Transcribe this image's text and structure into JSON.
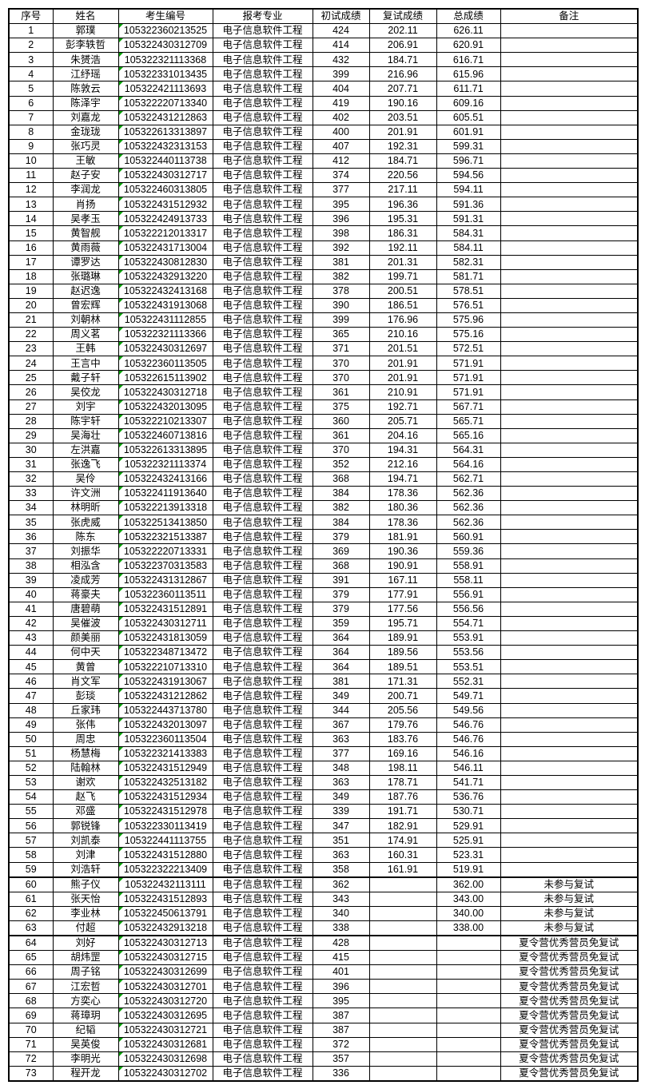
{
  "colors": {
    "border": "#000000",
    "text": "#000000",
    "corner_marker_green": "#00a000",
    "no_retest_total_blue": "#2222cc",
    "background": "#ffffff"
  },
  "table": {
    "headers": [
      "序号",
      "姓名",
      "考生编号",
      "报考专业",
      "初试成绩",
      "复试成绩",
      "总成绩",
      "备注"
    ],
    "rows": [
      {
        "no": "1",
        "name": "郭璞",
        "id": "105322360213525",
        "major": "电子信息软件工程",
        "initial": "424",
        "retest": "202.11",
        "total": "626.11",
        "remark": ""
      },
      {
        "no": "2",
        "name": "彭李轶哲",
        "id": "105322430312709",
        "major": "电子信息软件工程",
        "initial": "414",
        "retest": "206.91",
        "total": "620.91",
        "remark": ""
      },
      {
        "no": "3",
        "name": "朱赟浩",
        "id": "105322321113368",
        "major": "电子信息软件工程",
        "initial": "432",
        "retest": "184.71",
        "total": "616.71",
        "remark": ""
      },
      {
        "no": "4",
        "name": "江纾瑶",
        "id": "105322331013435",
        "major": "电子信息软件工程",
        "initial": "399",
        "retest": "216.96",
        "total": "615.96",
        "remark": ""
      },
      {
        "no": "5",
        "name": "陈敦云",
        "id": "105322421113693",
        "major": "电子信息软件工程",
        "initial": "404",
        "retest": "207.71",
        "total": "611.71",
        "remark": ""
      },
      {
        "no": "6",
        "name": "陈泽宇",
        "id": "105322220713340",
        "major": "电子信息软件工程",
        "initial": "419",
        "retest": "190.16",
        "total": "609.16",
        "remark": ""
      },
      {
        "no": "7",
        "name": "刘嘉龙",
        "id": "105322431212863",
        "major": "电子信息软件工程",
        "initial": "402",
        "retest": "203.51",
        "total": "605.51",
        "remark": ""
      },
      {
        "no": "8",
        "name": "金珑珑",
        "id": "105322613313897",
        "major": "电子信息软件工程",
        "initial": "400",
        "retest": "201.91",
        "total": "601.91",
        "remark": ""
      },
      {
        "no": "9",
        "name": "张巧灵",
        "id": "105322432313153",
        "major": "电子信息软件工程",
        "initial": "407",
        "retest": "192.31",
        "total": "599.31",
        "remark": ""
      },
      {
        "no": "10",
        "name": "王敏",
        "id": "105322440113738",
        "major": "电子信息软件工程",
        "initial": "412",
        "retest": "184.71",
        "total": "596.71",
        "remark": ""
      },
      {
        "no": "11",
        "name": "赵子安",
        "id": "105322430312717",
        "major": "电子信息软件工程",
        "initial": "374",
        "retest": "220.56",
        "total": "594.56",
        "remark": ""
      },
      {
        "no": "12",
        "name": "李润龙",
        "id": "105322460313805",
        "major": "电子信息软件工程",
        "initial": "377",
        "retest": "217.11",
        "total": "594.11",
        "remark": ""
      },
      {
        "no": "13",
        "name": "肖扬",
        "id": "105322431512932",
        "major": "电子信息软件工程",
        "initial": "395",
        "retest": "196.36",
        "total": "591.36",
        "remark": ""
      },
      {
        "no": "14",
        "name": "吴孝玉",
        "id": "105322424913733",
        "major": "电子信息软件工程",
        "initial": "396",
        "retest": "195.31",
        "total": "591.31",
        "remark": ""
      },
      {
        "no": "15",
        "name": "黄智舰",
        "id": "105322212013317",
        "major": "电子信息软件工程",
        "initial": "398",
        "retest": "186.31",
        "total": "584.31",
        "remark": ""
      },
      {
        "no": "16",
        "name": "黄雨薇",
        "id": "105322431713004",
        "major": "电子信息软件工程",
        "initial": "392",
        "retest": "192.11",
        "total": "584.11",
        "remark": ""
      },
      {
        "no": "17",
        "name": "谭罗达",
        "id": "105322430812830",
        "major": "电子信息软件工程",
        "initial": "381",
        "retest": "201.31",
        "total": "582.31",
        "remark": ""
      },
      {
        "no": "18",
        "name": "张璐琳",
        "id": "105322432913220",
        "major": "电子信息软件工程",
        "initial": "382",
        "retest": "199.71",
        "total": "581.71",
        "remark": ""
      },
      {
        "no": "19",
        "name": "赵迟逸",
        "id": "105322432413168",
        "major": "电子信息软件工程",
        "initial": "378",
        "retest": "200.51",
        "total": "578.51",
        "remark": ""
      },
      {
        "no": "20",
        "name": "曾宏辉",
        "id": "105322431913068",
        "major": "电子信息软件工程",
        "initial": "390",
        "retest": "186.51",
        "total": "576.51",
        "remark": ""
      },
      {
        "no": "21",
        "name": "刘朝林",
        "id": "105322431112855",
        "major": "电子信息软件工程",
        "initial": "399",
        "retest": "176.96",
        "total": "575.96",
        "remark": ""
      },
      {
        "no": "22",
        "name": "周义茗",
        "id": "105322321113366",
        "major": "电子信息软件工程",
        "initial": "365",
        "retest": "210.16",
        "total": "575.16",
        "remark": ""
      },
      {
        "no": "23",
        "name": "王韩",
        "id": "105322430312697",
        "major": "电子信息软件工程",
        "initial": "371",
        "retest": "201.51",
        "total": "572.51",
        "remark": ""
      },
      {
        "no": "24",
        "name": "王言中",
        "id": "105322360113505",
        "major": "电子信息软件工程",
        "initial": "370",
        "retest": "201.91",
        "total": "571.91",
        "remark": ""
      },
      {
        "no": "25",
        "name": "戴子轩",
        "id": "105322615113902",
        "major": "电子信息软件工程",
        "initial": "370",
        "retest": "201.91",
        "total": "571.91",
        "remark": ""
      },
      {
        "no": "26",
        "name": "吴佼龙",
        "id": "105322430312718",
        "major": "电子信息软件工程",
        "initial": "361",
        "retest": "210.91",
        "total": "571.91",
        "remark": ""
      },
      {
        "no": "27",
        "name": "刘宇",
        "id": "105322432013095",
        "major": "电子信息软件工程",
        "initial": "375",
        "retest": "192.71",
        "total": "567.71",
        "remark": ""
      },
      {
        "no": "28",
        "name": "陈宇轩",
        "id": "105322210213307",
        "major": "电子信息软件工程",
        "initial": "360",
        "retest": "205.71",
        "total": "565.71",
        "remark": ""
      },
      {
        "no": "29",
        "name": "吴海壮",
        "id": "105322460713816",
        "major": "电子信息软件工程",
        "initial": "361",
        "retest": "204.16",
        "total": "565.16",
        "remark": ""
      },
      {
        "no": "30",
        "name": "左洪嘉",
        "id": "105322613313895",
        "major": "电子信息软件工程",
        "initial": "370",
        "retest": "194.31",
        "total": "564.31",
        "remark": ""
      },
      {
        "no": "31",
        "name": "张逸飞",
        "id": "105322321113374",
        "major": "电子信息软件工程",
        "initial": "352",
        "retest": "212.16",
        "total": "564.16",
        "remark": ""
      },
      {
        "no": "32",
        "name": "吴伶",
        "id": "105322432413166",
        "major": "电子信息软件工程",
        "initial": "368",
        "retest": "194.71",
        "total": "562.71",
        "remark": ""
      },
      {
        "no": "33",
        "name": "许文洲",
        "id": "105322411913640",
        "major": "电子信息软件工程",
        "initial": "384",
        "retest": "178.36",
        "total": "562.36",
        "remark": ""
      },
      {
        "no": "34",
        "name": "林明昕",
        "id": "105322213913318",
        "major": "电子信息软件工程",
        "initial": "382",
        "retest": "180.36",
        "total": "562.36",
        "remark": ""
      },
      {
        "no": "35",
        "name": "张虎威",
        "id": "105322513413850",
        "major": "电子信息软件工程",
        "initial": "384",
        "retest": "178.36",
        "total": "562.36",
        "remark": ""
      },
      {
        "no": "36",
        "name": "陈东",
        "id": "105322321513387",
        "major": "电子信息软件工程",
        "initial": "379",
        "retest": "181.91",
        "total": "560.91",
        "remark": ""
      },
      {
        "no": "37",
        "name": "刘振华",
        "id": "105322220713331",
        "major": "电子信息软件工程",
        "initial": "369",
        "retest": "190.36",
        "total": "559.36",
        "remark": ""
      },
      {
        "no": "38",
        "name": "相泓含",
        "id": "105322370313583",
        "major": "电子信息软件工程",
        "initial": "368",
        "retest": "190.91",
        "total": "558.91",
        "remark": ""
      },
      {
        "no": "39",
        "name": "凌成芳",
        "id": "105322431312867",
        "major": "电子信息软件工程",
        "initial": "391",
        "retest": "167.11",
        "total": "558.11",
        "remark": ""
      },
      {
        "no": "40",
        "name": "蒋豪夫",
        "id": "105322360113511",
        "major": "电子信息软件工程",
        "initial": "379",
        "retest": "177.91",
        "total": "556.91",
        "remark": ""
      },
      {
        "no": "41",
        "name": "唐碧萌",
        "id": "105322431512891",
        "major": "电子信息软件工程",
        "initial": "379",
        "retest": "177.56",
        "total": "556.56",
        "remark": ""
      },
      {
        "no": "42",
        "name": "吴催波",
        "id": "105322430312711",
        "major": "电子信息软件工程",
        "initial": "359",
        "retest": "195.71",
        "total": "554.71",
        "remark": ""
      },
      {
        "no": "43",
        "name": "颜美丽",
        "id": "105322431813059",
        "major": "电子信息软件工程",
        "initial": "364",
        "retest": "189.91",
        "total": "553.91",
        "remark": ""
      },
      {
        "no": "44",
        "name": "何中天",
        "id": "105322348713472",
        "major": "电子信息软件工程",
        "initial": "364",
        "retest": "189.56",
        "total": "553.56",
        "remark": ""
      },
      {
        "no": "45",
        "name": "黄曾",
        "id": "105322210713310",
        "major": "电子信息软件工程",
        "initial": "364",
        "retest": "189.51",
        "total": "553.51",
        "remark": ""
      },
      {
        "no": "46",
        "name": "肖文军",
        "id": "105322431913067",
        "major": "电子信息软件工程",
        "initial": "381",
        "retest": "171.31",
        "total": "552.31",
        "remark": ""
      },
      {
        "no": "47",
        "name": "彭琰",
        "id": "105322431212862",
        "major": "电子信息软件工程",
        "initial": "349",
        "retest": "200.71",
        "total": "549.71",
        "remark": ""
      },
      {
        "no": "48",
        "name": "丘家玮",
        "id": "105322443713780",
        "major": "电子信息软件工程",
        "initial": "344",
        "retest": "205.56",
        "total": "549.56",
        "remark": ""
      },
      {
        "no": "49",
        "name": "张伟",
        "id": "105322432013097",
        "major": "电子信息软件工程",
        "initial": "367",
        "retest": "179.76",
        "total": "546.76",
        "remark": ""
      },
      {
        "no": "50",
        "name": "周忠",
        "id": "105322360113504",
        "major": "电子信息软件工程",
        "initial": "363",
        "retest": "183.76",
        "total": "546.76",
        "remark": ""
      },
      {
        "no": "51",
        "name": "杨慧梅",
        "id": "105322321413383",
        "major": "电子信息软件工程",
        "initial": "377",
        "retest": "169.16",
        "total": "546.16",
        "remark": ""
      },
      {
        "no": "52",
        "name": "陆翰林",
        "id": "105322431512949",
        "major": "电子信息软件工程",
        "initial": "348",
        "retest": "198.11",
        "total": "546.11",
        "remark": ""
      },
      {
        "no": "53",
        "name": "谢欢",
        "id": "105322432513182",
        "major": "电子信息软件工程",
        "initial": "363",
        "retest": "178.71",
        "total": "541.71",
        "remark": ""
      },
      {
        "no": "54",
        "name": "赵飞",
        "id": "105322431512934",
        "major": "电子信息软件工程",
        "initial": "349",
        "retest": "187.76",
        "total": "536.76",
        "remark": ""
      },
      {
        "no": "55",
        "name": "邓盛",
        "id": "105322431512978",
        "major": "电子信息软件工程",
        "initial": "339",
        "retest": "191.71",
        "total": "530.71",
        "remark": ""
      },
      {
        "no": "56",
        "name": "郭锐锋",
        "id": "105322330113419",
        "major": "电子信息软件工程",
        "initial": "347",
        "retest": "182.91",
        "total": "529.91",
        "remark": ""
      },
      {
        "no": "57",
        "name": "刘凯泰",
        "id": "105322441113755",
        "major": "电子信息软件工程",
        "initial": "351",
        "retest": "174.91",
        "total": "525.91",
        "remark": ""
      },
      {
        "no": "58",
        "name": "刘津",
        "id": "105322431512880",
        "major": "电子信息软件工程",
        "initial": "363",
        "retest": "160.31",
        "total": "523.31",
        "remark": ""
      },
      {
        "no": "59",
        "name": "刘浩轩",
        "id": "105322322213409",
        "major": "电子信息软件工程",
        "initial": "358",
        "retest": "161.91",
        "total": "519.91",
        "remark": ""
      },
      {
        "no": "60",
        "name": "熊子仪",
        "id": "105322432113111",
        "major": "电子信息软件工程",
        "initial": "362",
        "retest": "",
        "total": "362.00",
        "remark": "未参与复试",
        "total_color": "blue",
        "thick_top": true
      },
      {
        "no": "61",
        "name": "张天怡",
        "id": "105322431512893",
        "major": "电子信息软件工程",
        "initial": "343",
        "retest": "",
        "total": "343.00",
        "remark": "未参与复试",
        "total_color": "blue"
      },
      {
        "no": "62",
        "name": "李业林",
        "id": "105322450613791",
        "major": "电子信息软件工程",
        "initial": "340",
        "retest": "",
        "total": "340.00",
        "remark": "未参与复试",
        "total_color": "blue"
      },
      {
        "no": "63",
        "name": "付超",
        "id": "105322432913218",
        "major": "电子信息软件工程",
        "initial": "338",
        "retest": "",
        "total": "338.00",
        "remark": "未参与复试",
        "total_color": "blue"
      },
      {
        "no": "64",
        "name": "刘好",
        "id": "105322430312713",
        "major": "电子信息软件工程",
        "initial": "428",
        "retest": "",
        "total": "",
        "remark": "夏令营优秀营员免复试",
        "thick_top": true
      },
      {
        "no": "65",
        "name": "胡炜罡",
        "id": "105322430312715",
        "major": "电子信息软件工程",
        "initial": "415",
        "retest": "",
        "total": "",
        "remark": "夏令营优秀营员免复试"
      },
      {
        "no": "66",
        "name": "周子铭",
        "id": "105322430312699",
        "major": "电子信息软件工程",
        "initial": "401",
        "retest": "",
        "total": "",
        "remark": "夏令营优秀营员免复试"
      },
      {
        "no": "67",
        "name": "江宏哲",
        "id": "105322430312701",
        "major": "电子信息软件工程",
        "initial": "396",
        "retest": "",
        "total": "",
        "remark": "夏令营优秀营员免复试"
      },
      {
        "no": "68",
        "name": "方奕心",
        "id": "105322430312720",
        "major": "电子信息软件工程",
        "initial": "395",
        "retest": "",
        "total": "",
        "remark": "夏令营优秀营员免复试"
      },
      {
        "no": "69",
        "name": "蒋璋玥",
        "id": "105322430312695",
        "major": "电子信息软件工程",
        "initial": "387",
        "retest": "",
        "total": "",
        "remark": "夏令营优秀营员免复试"
      },
      {
        "no": "70",
        "name": "纪韬",
        "id": "105322430312721",
        "major": "电子信息软件工程",
        "initial": "387",
        "retest": "",
        "total": "",
        "remark": "夏令营优秀营员免复试"
      },
      {
        "no": "71",
        "name": "吴英俊",
        "id": "105322430312681",
        "major": "电子信息软件工程",
        "initial": "372",
        "retest": "",
        "total": "",
        "remark": "夏令营优秀营员免复试"
      },
      {
        "no": "72",
        "name": "李明光",
        "id": "105322430312698",
        "major": "电子信息软件工程",
        "initial": "357",
        "retest": "",
        "total": "",
        "remark": "夏令营优秀营员免复试"
      },
      {
        "no": "73",
        "name": "程开龙",
        "id": "105322430312702",
        "major": "电子信息软件工程",
        "initial": "336",
        "retest": "",
        "total": "",
        "remark": "夏令营优秀营员免复试"
      }
    ]
  }
}
